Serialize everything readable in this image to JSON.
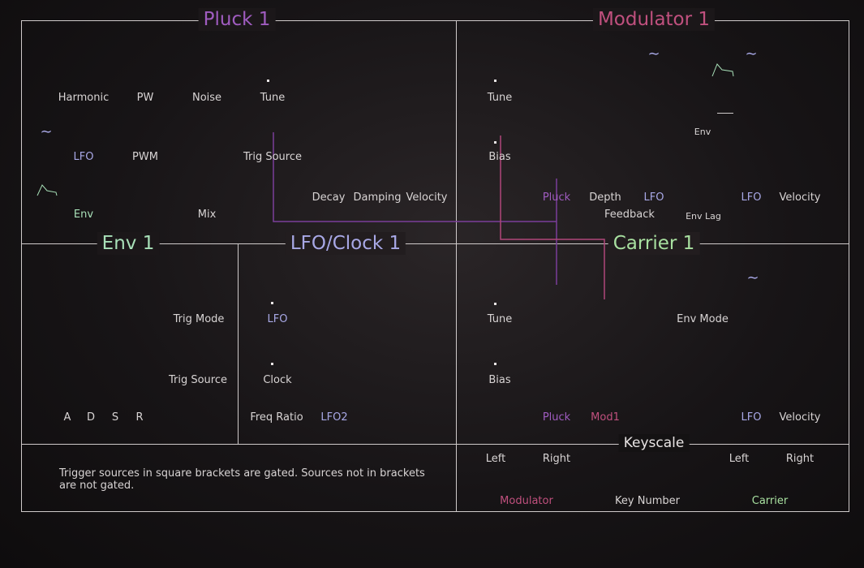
{
  "colors": {
    "pluck": "#a05cc0",
    "modulator": "#c0507e",
    "env": "#a8e0b8",
    "lfo": "#a8a8e6",
    "carrier": "#a8e0a0",
    "text": "#d8d4d4"
  },
  "sections": {
    "pluck": "Pluck 1",
    "modulator": "Modulator 1",
    "env": "Env 1",
    "lfo_clock": "LFO/Clock 1",
    "carrier": "Carrier 1",
    "keyscale": "Keyscale"
  },
  "pluck": {
    "harmonic": "Harmonic",
    "pw": "PW",
    "noise": "Noise",
    "tune": "Tune",
    "lfo": "LFO",
    "pwm": "PWM",
    "trig_source": "Trig Source",
    "decay": "Decay",
    "damping": "Damping",
    "velocity": "Velocity",
    "env": "Env",
    "mix": "Mix"
  },
  "modulator": {
    "tune": "Tune",
    "bias": "Bias",
    "pluck": "Pluck",
    "depth": "Depth",
    "lfo": "LFO",
    "lfo2": "LFO",
    "velocity": "Velocity",
    "feedback": "Feedback",
    "env": "Env",
    "env_lag": "Env Lag"
  },
  "env": {
    "trig_mode": "Trig Mode",
    "trig_source": "Trig Source",
    "a": "A",
    "d": "D",
    "s": "S",
    "r": "R"
  },
  "lfo_clock": {
    "lfo": "LFO",
    "clock": "Clock",
    "freq_ratio": "Freq Ratio",
    "lfo2": "LFO2"
  },
  "carrier": {
    "tune": "Tune",
    "bias": "Bias",
    "env_mode": "Env Mode",
    "pluck": "Pluck",
    "mod1": "Mod1",
    "lfo": "LFO",
    "velocity": "Velocity"
  },
  "keyscale": {
    "mod_left": "Left",
    "mod_right": "Right",
    "car_left": "Left",
    "car_right": "Right",
    "modulator": "Modulator",
    "key_number": "Key Number",
    "carrier": "Carrier"
  },
  "note": {
    "line1": "Trigger sources in square brackets are gated.  Sources not in brackets",
    "line2": "are not gated."
  },
  "icons": {
    "sine": "sine-wave-icon",
    "envelope": "envelope-shape-icon"
  }
}
